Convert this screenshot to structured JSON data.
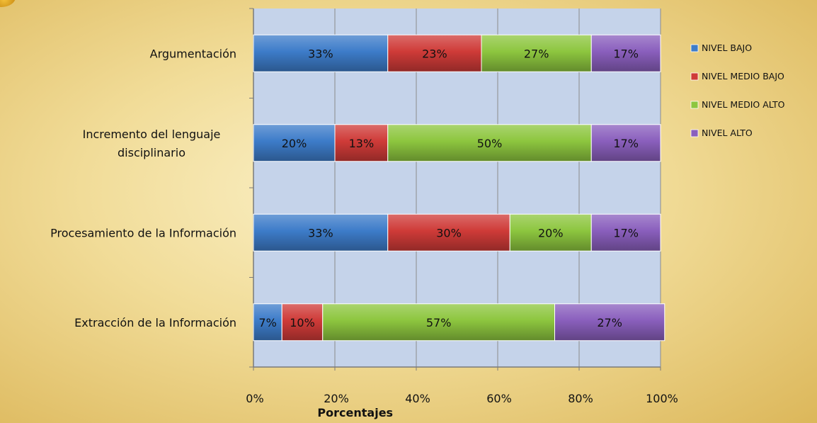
{
  "chart_data": {
    "type": "bar",
    "orientation": "horizontal",
    "stacked": "percent",
    "categories": [
      [
        "Argumentación"
      ],
      [
        "Incremento del lenguaje",
        "disciplinario"
      ],
      [
        "Procesamiento de la Información"
      ],
      [
        "Extracción de la Información"
      ]
    ],
    "series": [
      {
        "name": "NIVEL BAJO",
        "color": "#3d7cc9",
        "values": [
          33,
          20,
          33,
          7
        ]
      },
      {
        "name": "NIVEL MEDIO BAJO",
        "color": "#cf3b38",
        "values": [
          23,
          13,
          30,
          10
        ]
      },
      {
        "name": "NIVEL MEDIO ALTO",
        "color": "#8dc63f",
        "values": [
          27,
          50,
          20,
          57
        ]
      },
      {
        "name": "NIVEL ALTO",
        "color": "#8a5fbd",
        "values": [
          17,
          17,
          17,
          27
        ]
      }
    ],
    "data_labels": [
      [
        "33%",
        "20%",
        "33%",
        "7%"
      ],
      [
        "23%",
        "13%",
        "30%",
        "10%"
      ],
      [
        "27%",
        "50%",
        "20%",
        "57%"
      ],
      [
        "17%",
        "17%",
        "17%",
        "27%"
      ]
    ],
    "xlabel": "Porcentajes",
    "ylabel": "",
    "xlim": [
      0,
      100
    ],
    "xticks": [
      "0%",
      "20%",
      "40%",
      "60%",
      "80%",
      "100%"
    ],
    "grid": true,
    "legend": "right",
    "plot_background": "#c5d3ea"
  }
}
